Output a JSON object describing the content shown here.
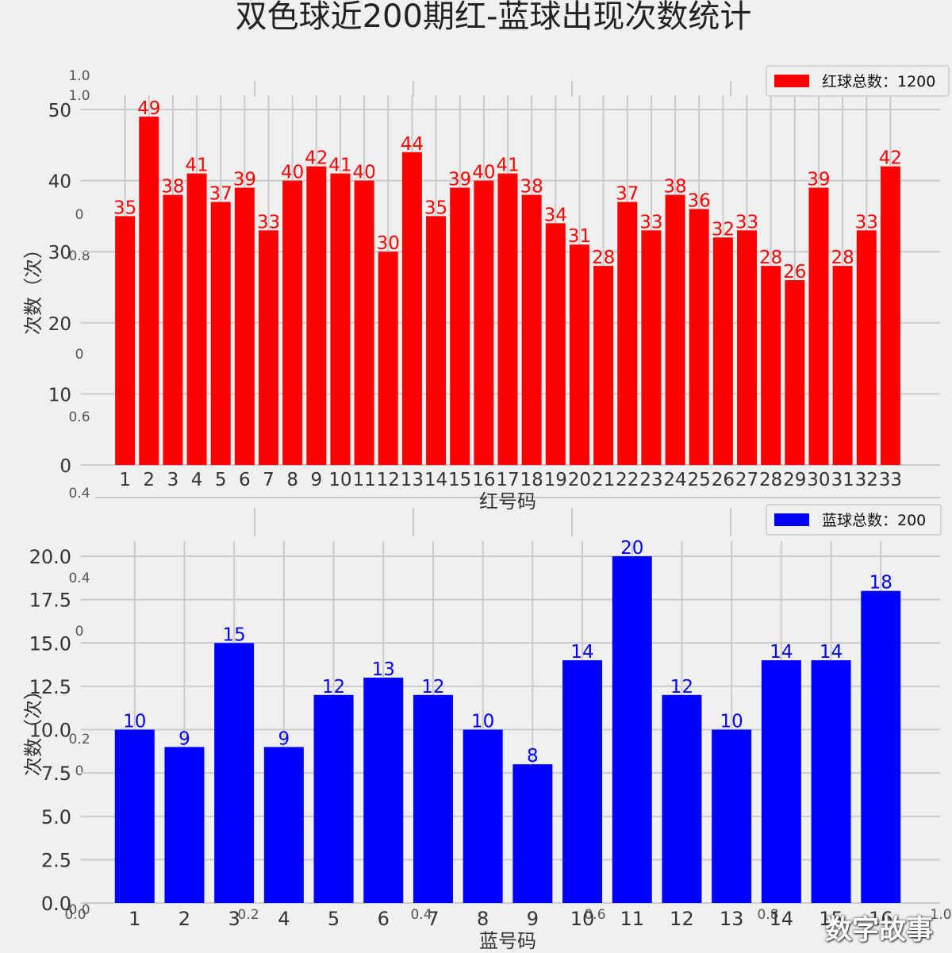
{
  "title": "双色球近200期红-蓝球出现次数统计",
  "watermark": "数字故事",
  "ghost_ticks": {
    "left": [
      "1.0",
      "1.0",
      "0",
      "0.8",
      "0",
      "0.6",
      "0.4",
      "0.4",
      "0",
      "0.2",
      "0",
      "0.0"
    ],
    "bottom": [
      "0.0",
      "0.2",
      "0.4",
      "0.6",
      "0.8",
      "1.0"
    ]
  },
  "chart_data": [
    {
      "type": "bar",
      "color": "#ff0000",
      "legend": "红球总数：1200",
      "xlabel": "红号码",
      "ylabel": "次数（次）",
      "ylim": [
        0,
        50
      ],
      "yticks": [
        0,
        10,
        20,
        30,
        40,
        50
      ],
      "ytick_labels": [
        "0",
        "10",
        "20",
        "30",
        "40",
        "50"
      ],
      "categories": [
        "1",
        "2",
        "3",
        "4",
        "5",
        "6",
        "7",
        "8",
        "9",
        "10",
        "11",
        "12",
        "13",
        "14",
        "15",
        "16",
        "17",
        "18",
        "19",
        "20",
        "21",
        "22",
        "23",
        "24",
        "25",
        "26",
        "27",
        "28",
        "29",
        "30",
        "31",
        "32",
        "33"
      ],
      "values": [
        35,
        49,
        38,
        41,
        37,
        39,
        33,
        40,
        42,
        41,
        40,
        30,
        44,
        35,
        39,
        40,
        41,
        38,
        34,
        31,
        28,
        37,
        33,
        38,
        36,
        32,
        33,
        28,
        26,
        39,
        28,
        33,
        42
      ]
    },
    {
      "type": "bar",
      "color": "#0000ff",
      "legend": "蓝球总数：200",
      "xlabel": "蓝号码",
      "ylabel": "次数（次）",
      "ylim": [
        0,
        20
      ],
      "yticks": [
        0,
        2.5,
        5,
        7.5,
        10,
        12.5,
        15,
        17.5,
        20
      ],
      "ytick_labels": [
        "0.0",
        "2.5",
        "5.0",
        "7.5",
        "10.0",
        "12.5",
        "15.0",
        "17.5",
        "20.0"
      ],
      "categories": [
        "1",
        "2",
        "3",
        "4",
        "5",
        "6",
        "7",
        "8",
        "9",
        "10",
        "11",
        "12",
        "13",
        "14",
        "15",
        "16"
      ],
      "values": [
        10,
        9,
        15,
        9,
        12,
        13,
        12,
        10,
        8,
        14,
        20,
        12,
        10,
        14,
        14,
        18
      ]
    }
  ]
}
